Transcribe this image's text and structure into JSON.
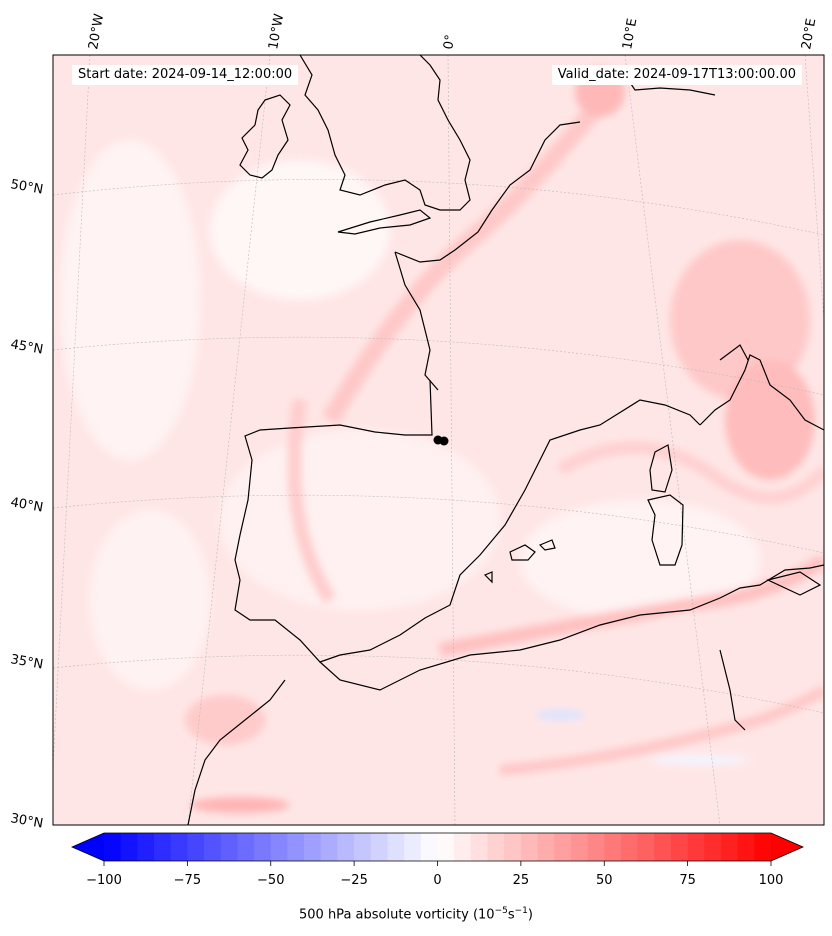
{
  "header": {
    "start_label": "Start date: 2024-09-14_12:00:00",
    "valid_label": "Valid_date: 2024-09-17T13:00:00.00"
  },
  "lon_labels": [
    "20°W",
    "10°W",
    "0°",
    "10°E",
    "20°E"
  ],
  "lat_labels": [
    "50°N",
    "45°N",
    "40°N",
    "35°N",
    "30°N"
  ],
  "colorbar": {
    "tick_labels": [
      "−100",
      "−75",
      "−50",
      "−25",
      "0",
      "25",
      "50",
      "75",
      "100"
    ],
    "min": -100,
    "max": 100,
    "title_text": "500 hPa absolute vorticity (10",
    "title_exp1": "−5",
    "title_mid": "s",
    "title_exp2": "−1",
    "title_close": ")",
    "colors": {
      "negative": "#0000ff",
      "neutral": "#ffffff",
      "positive": "#ff0000"
    }
  },
  "map": {
    "field_color": "#ffe1e1",
    "coastline_color": "#000000",
    "marker_color": "#000000"
  }
}
